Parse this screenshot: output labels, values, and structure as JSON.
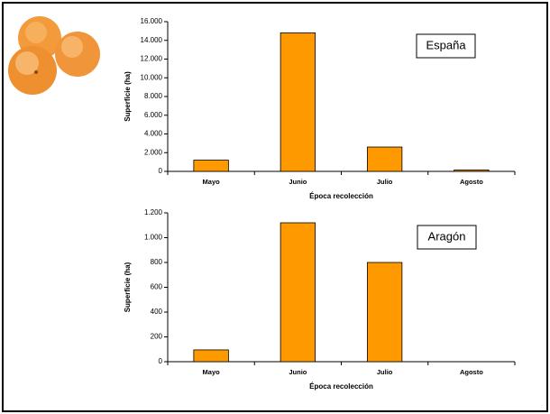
{
  "chart_data": [
    {
      "type": "bar",
      "annotation": "España",
      "xlabel": "Época recolección",
      "ylabel": "Superficie (ha)",
      "categories": [
        "Mayo",
        "Junio",
        "Julio",
        "Agosto"
      ],
      "values": [
        1200,
        14800,
        2600,
        150
      ],
      "color": "#ff9900",
      "ylim": [
        0,
        16000
      ],
      "yticks": [
        0,
        {
          "value": 2000,
          "label": "2.000"
        },
        {
          "value": 4000,
          "label": "4.000"
        },
        {
          "value": 6000,
          "label": "6.000"
        },
        {
          "value": 8000,
          "label": "8.000"
        },
        {
          "value": 10000,
          "label": "10.000"
        },
        {
          "value": 12000,
          "label": "12.000"
        },
        {
          "value": 14000,
          "label": "14.000"
        },
        {
          "value": 16000,
          "label": "16.000"
        }
      ]
    },
    {
      "type": "bar",
      "annotation": "Aragón",
      "xlabel": "Época recolección",
      "ylabel": "Superficie (ha)",
      "categories": [
        "Mayo",
        "Junio",
        "Julio",
        "Agosto"
      ],
      "values": [
        95,
        1120,
        800,
        0
      ],
      "color": "#ff9900",
      "ylim": [
        0,
        1200
      ],
      "yticks": [
        0,
        200,
        400,
        600,
        800,
        {
          "value": 1000,
          "label": "1.000"
        },
        {
          "value": 1200,
          "label": "1.200"
        }
      ]
    }
  ]
}
